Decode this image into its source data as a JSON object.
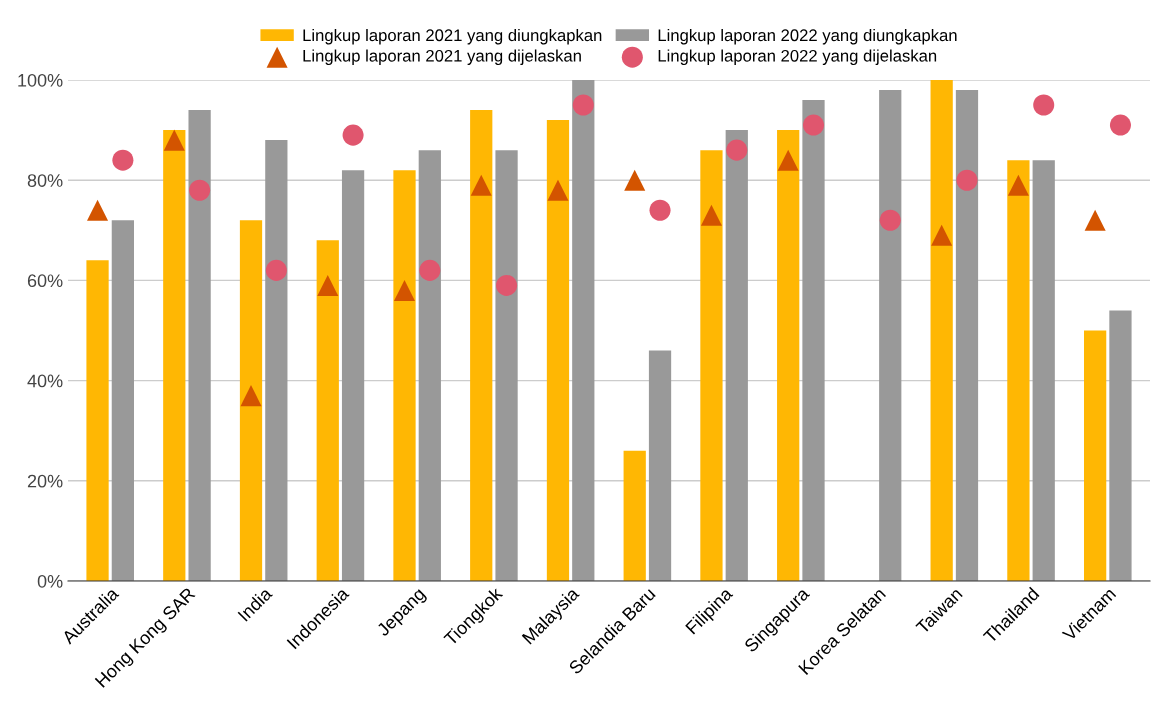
{
  "chart_data": {
    "type": "bar",
    "categories": [
      "Australia",
      "Hong Kong SAR",
      "India",
      "Indonesia",
      "Jepang",
      "Tiongkok",
      "Malaysia",
      "Selandia Baru",
      "Filipina",
      "Singapura",
      "Korea Selatan",
      "Taiwan",
      "Thailand",
      "Vietnam"
    ],
    "series": [
      {
        "name": "Lingkup laporan 2021 yang diungkapkan",
        "color": "#ffb703",
        "values": [
          64,
          90,
          72,
          68,
          82,
          94,
          92,
          26,
          86,
          90,
          null,
          100,
          84,
          50
        ]
      },
      {
        "name": "Lingkup laporan 2022 yang diungkapkan",
        "color": "#999999",
        "values": [
          72,
          94,
          88,
          82,
          86,
          86,
          100,
          46,
          90,
          96,
          98,
          98,
          84,
          54
        ]
      },
      {
        "name": "Lingkup laporan 2021 yang dijelaskan",
        "type": "scatter",
        "marker": "triangle",
        "color": "#d35400",
        "values": [
          74,
          88,
          37,
          59,
          58,
          79,
          78,
          80,
          73,
          84,
          null,
          69,
          79,
          72
        ]
      },
      {
        "name": "Lingkup laporan 2022 yang dijelaskan",
        "type": "scatter",
        "marker": "circle",
        "color": "#e0566e",
        "values": [
          84,
          78,
          62,
          89,
          62,
          59,
          95,
          74,
          86,
          91,
          72,
          80,
          95,
          91
        ]
      }
    ],
    "ylim": [
      0,
      100
    ],
    "yticks": [
      {
        "value": 0,
        "label": "0%"
      },
      {
        "value": 20,
        "label": "20%"
      },
      {
        "value": 40,
        "label": "40%"
      },
      {
        "value": 60,
        "label": "60%"
      },
      {
        "value": 80,
        "label": "80%"
      },
      {
        "value": 100,
        "label": "100%"
      }
    ],
    "grid": "y",
    "legend": "top"
  }
}
